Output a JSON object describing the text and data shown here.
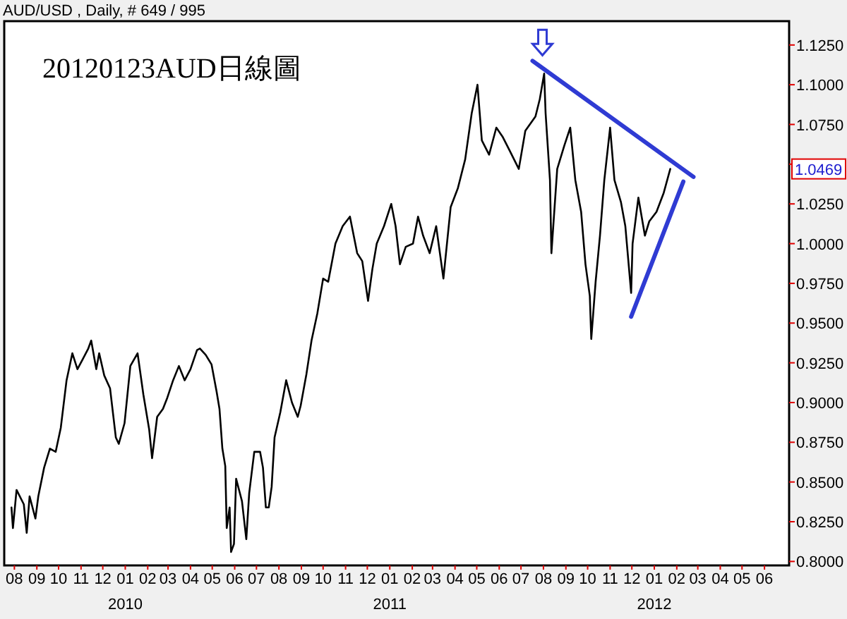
{
  "chart_data": {
    "type": "line",
    "title": "AUD/USD , Daily, # 649 / 995",
    "subtitle": "20120123AUD日線圖",
    "annotations": [
      "1.0469",
      "2010",
      "2011",
      "2012"
    ],
    "xlim": [
      "2009-07-18",
      "2012-07-05"
    ],
    "ylim": [
      0.7975,
      1.14
    ],
    "xticks": [
      {
        "value": "2009-08-01",
        "label": "08"
      },
      {
        "value": "2009-09-01",
        "label": "09"
      },
      {
        "value": "2009-10-01",
        "label": "10"
      },
      {
        "value": "2009-11-01",
        "label": "11"
      },
      {
        "value": "2009-12-01",
        "label": "12"
      },
      {
        "value": "2010-01-01",
        "label": "01"
      },
      {
        "value": "2010-02-01",
        "label": "02"
      },
      {
        "value": "2010-03-01",
        "label": "03"
      },
      {
        "value": "2010-04-01",
        "label": "04"
      },
      {
        "value": "2010-05-01",
        "label": "05"
      },
      {
        "value": "2010-06-01",
        "label": "06"
      },
      {
        "value": "2010-07-01",
        "label": "07"
      },
      {
        "value": "2010-08-01",
        "label": "08"
      },
      {
        "value": "2010-09-01",
        "label": "09"
      },
      {
        "value": "2010-10-01",
        "label": "10"
      },
      {
        "value": "2010-11-01",
        "label": "11"
      },
      {
        "value": "2010-12-01",
        "label": "12"
      },
      {
        "value": "2011-01-01",
        "label": "01"
      },
      {
        "value": "2011-02-01",
        "label": "02"
      },
      {
        "value": "2011-03-01",
        "label": "03"
      },
      {
        "value": "2011-04-01",
        "label": "04"
      },
      {
        "value": "2011-05-01",
        "label": "05"
      },
      {
        "value": "2011-06-01",
        "label": "06"
      },
      {
        "value": "2011-07-01",
        "label": "07"
      },
      {
        "value": "2011-08-01",
        "label": "08"
      },
      {
        "value": "2011-09-01",
        "label": "09"
      },
      {
        "value": "2011-10-01",
        "label": "10"
      },
      {
        "value": "2011-11-01",
        "label": "11"
      },
      {
        "value": "2011-12-01",
        "label": "12"
      },
      {
        "value": "2012-01-01",
        "label": "01"
      },
      {
        "value": "2012-02-01",
        "label": "02"
      },
      {
        "value": "2012-03-01",
        "label": "03"
      },
      {
        "value": "2012-04-01",
        "label": "04"
      },
      {
        "value": "2012-05-01",
        "label": "05"
      },
      {
        "value": "2012-06-01",
        "label": "06"
      }
    ],
    "yticks": [
      {
        "value": 0.8,
        "label": "0.8000"
      },
      {
        "value": 0.825,
        "label": "0.8250"
      },
      {
        "value": 0.85,
        "label": "0.8500"
      },
      {
        "value": 0.875,
        "label": "0.8750"
      },
      {
        "value": 0.9,
        "label": "0.9000"
      },
      {
        "value": 0.925,
        "label": "0.9250"
      },
      {
        "value": 0.95,
        "label": "0.9500"
      },
      {
        "value": 0.975,
        "label": "0.9750"
      },
      {
        "value": 1.0,
        "label": "1.0000"
      },
      {
        "value": 1.025,
        "label": "1.0250"
      },
      {
        "value": 1.05,
        "label": null
      },
      {
        "value": 1.075,
        "label": "1.0750"
      },
      {
        "value": 1.1,
        "label": "1.1000"
      },
      {
        "value": 1.125,
        "label": "1.1250"
      }
    ],
    "series": [
      {
        "color": "#000000",
        "x": [
          "2009-07-28",
          "2009-07-30",
          "2009-08-04",
          "2009-08-14",
          "2009-08-18",
          "2009-08-22",
          "2009-08-30",
          "2009-09-03",
          "2009-09-11",
          "2009-09-19",
          "2009-09-27",
          "2009-10-04",
          "2009-10-12",
          "2009-10-20",
          "2009-10-27",
          "2009-11-03",
          "2009-11-11",
          "2009-11-15",
          "2009-11-22",
          "2009-11-26",
          "2009-12-03",
          "2009-12-11",
          "2009-12-19",
          "2009-12-23",
          "2009-12-31",
          "2010-01-08",
          "2010-01-18",
          "2010-01-26",
          "2010-02-03",
          "2010-02-07",
          "2010-02-14",
          "2010-02-22",
          "2010-02-28",
          "2010-03-08",
          "2010-03-16",
          "2010-03-24",
          "2010-04-01",
          "2010-04-10",
          "2010-04-14",
          "2010-04-22",
          "2010-04-30",
          "2010-05-07",
          "2010-05-11",
          "2010-05-15",
          "2010-05-19",
          "2010-05-21",
          "2010-05-25",
          "2010-05-27",
          "2010-05-31",
          "2010-06-03",
          "2010-06-11",
          "2010-06-17",
          "2010-06-21",
          "2010-06-28",
          "2010-07-06",
          "2010-07-10",
          "2010-07-14",
          "2010-07-18",
          "2010-07-22",
          "2010-07-26",
          "2010-08-03",
          "2010-08-11",
          "2010-08-19",
          "2010-08-27",
          "2010-08-31",
          "2010-09-08",
          "2010-09-15",
          "2010-09-23",
          "2010-10-01",
          "2010-10-08",
          "2010-10-18",
          "2010-10-28",
          "2010-11-07",
          "2010-11-17",
          "2010-11-24",
          "2010-12-02",
          "2010-12-08",
          "2010-12-14",
          "2010-12-24",
          "2011-01-03",
          "2011-01-09",
          "2011-01-15",
          "2011-01-23",
          "2011-02-02",
          "2011-02-09",
          "2011-02-16",
          "2011-02-25",
          "2011-03-06",
          "2011-03-16",
          "2011-03-26",
          "2011-04-05",
          "2011-04-15",
          "2011-04-24",
          "2011-05-02",
          "2011-05-08",
          "2011-05-18",
          "2011-05-28",
          "2011-06-06",
          "2011-06-16",
          "2011-06-28",
          "2011-07-07",
          "2011-07-21",
          "2011-07-27",
          "2011-08-02",
          "2011-08-04",
          "2011-08-10",
          "2011-08-12",
          "2011-08-20",
          "2011-08-30",
          "2011-09-07",
          "2011-09-14",
          "2011-09-22",
          "2011-09-28",
          "2011-10-04",
          "2011-10-06",
          "2011-10-12",
          "2011-10-18",
          "2011-10-24",
          "2011-11-01",
          "2011-11-07",
          "2011-11-16",
          "2011-11-22",
          "2011-11-30",
          "2011-12-02",
          "2011-12-10",
          "2011-12-19",
          "2011-12-25",
          "2012-01-04",
          "2012-01-14",
          "2012-01-23"
        ],
        "values": [
          0.834,
          0.821,
          0.845,
          0.836,
          0.818,
          0.841,
          0.827,
          0.841,
          0.859,
          0.871,
          0.869,
          0.884,
          0.914,
          0.931,
          0.921,
          0.927,
          0.934,
          0.939,
          0.921,
          0.931,
          0.917,
          0.909,
          0.878,
          0.874,
          0.887,
          0.923,
          0.931,
          0.905,
          0.883,
          0.865,
          0.891,
          0.896,
          0.903,
          0.914,
          0.923,
          0.914,
          0.921,
          0.933,
          0.934,
          0.93,
          0.924,
          0.907,
          0.896,
          0.871,
          0.86,
          0.821,
          0.834,
          0.806,
          0.811,
          0.852,
          0.838,
          0.814,
          0.843,
          0.869,
          0.869,
          0.859,
          0.834,
          0.834,
          0.847,
          0.878,
          0.894,
          0.914,
          0.9,
          0.891,
          0.898,
          0.918,
          0.939,
          0.956,
          0.978,
          0.976,
          1.0,
          1.011,
          1.017,
          0.994,
          0.989,
          0.964,
          0.984,
          1.0,
          1.011,
          1.025,
          1.011,
          0.987,
          0.998,
          1.0,
          1.017,
          1.005,
          0.994,
          1.011,
          0.978,
          1.023,
          1.035,
          1.053,
          1.082,
          1.1,
          1.065,
          1.056,
          1.073,
          1.067,
          1.058,
          1.047,
          1.071,
          1.08,
          1.091,
          1.107,
          1.082,
          1.04,
          0.994,
          1.047,
          1.062,
          1.073,
          1.04,
          1.02,
          0.987,
          0.967,
          0.94,
          0.976,
          1.005,
          1.04,
          1.073,
          1.04,
          1.026,
          1.011,
          0.969,
          1.0,
          1.029,
          1.005,
          1.014,
          1.02,
          1.032,
          1.047
        ]
      },
      {
        "type": "line",
        "color": "#2f3bd3",
        "x": [
          "2011-07-17",
          "2012-02-24"
        ],
        "values": [
          1.115,
          1.042
        ]
      },
      {
        "type": "line",
        "color": "#2f3bd3",
        "x": [
          "2011-11-30",
          "2012-02-10"
        ],
        "values": [
          0.954,
          1.039
        ]
      }
    ]
  }
}
